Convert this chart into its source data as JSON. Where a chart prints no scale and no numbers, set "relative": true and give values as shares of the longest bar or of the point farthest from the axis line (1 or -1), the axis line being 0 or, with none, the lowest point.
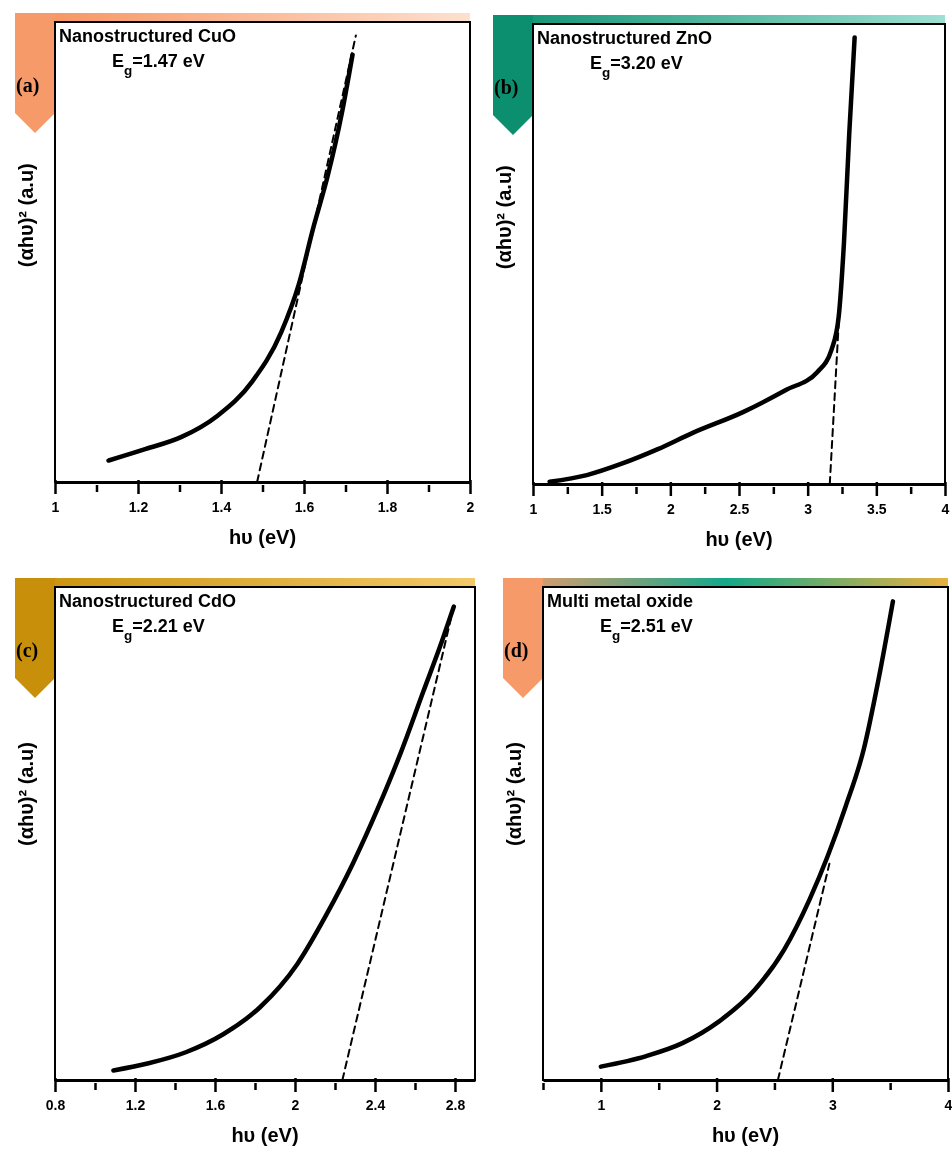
{
  "chart_data": [
    {
      "type": "line",
      "title": "Nanostructured CuO",
      "xlabel": "hυ (eV)",
      "ylabel": "(αhυ)² (a.u)",
      "annotations": [
        "(a)",
        "E$_{g}$=1.47 eV"
      ],
      "relative": true,
      "xlim": [
        1,
        2
      ],
      "xticks": [
        1,
        {
          "value": 1.1,
          "label": null
        },
        1.2,
        {
          "value": 1.3,
          "label": null
        },
        1.4,
        {
          "value": 1.5,
          "label": null
        },
        1.6,
        {
          "value": 1.7,
          "label": null
        },
        1.8,
        {
          "value": 1.9,
          "label": null
        },
        2
      ],
      "series": [
        {
          "type": "line",
          "color": "#000000",
          "x": [
            1.129,
            1.219,
            1.305,
            1.391,
            1.476,
            1.545,
            1.588,
            1.622,
            1.657,
            1.691,
            1.717
          ],
          "values": [
            0.048,
            0.074,
            0.101,
            0.148,
            0.226,
            0.335,
            0.444,
            0.568,
            0.685,
            0.825,
            0.957
          ]
        },
        {
          "type": "line",
          "color": "#000000",
          "line_style": "dashed",
          "x": [
            1.487,
            1.725
          ],
          "values": [
            0,
            1
          ]
        }
      ]
    },
    {
      "type": "line",
      "title": "Nanostructured ZnO",
      "xlabel": "hυ (eV)",
      "ylabel": "(αhυ)² (a.u)",
      "annotations": [
        "(b)",
        "E$_{g}$=3.20 eV"
      ],
      "relative": true,
      "xlim": [
        1,
        4
      ],
      "xticks": [
        1,
        {
          "value": 1.25,
          "label": null
        },
        1.5,
        {
          "value": 1.75,
          "label": null
        },
        2,
        {
          "value": 2.25,
          "label": null
        },
        2.5,
        {
          "value": 2.75,
          "label": null
        },
        3,
        {
          "value": 3.25,
          "label": null
        },
        3.5,
        {
          "value": 3.75,
          "label": null
        },
        4
      ],
      "series": [
        {
          "type": "line",
          "color": "#000000",
          "x": [
            1.121,
            1.392,
            1.651,
            1.909,
            2.167,
            2.529,
            2.838,
            3.071,
            3.174,
            3.226,
            3.264,
            3.303,
            3.342
          ],
          "values": [
            0.005,
            0.02,
            0.046,
            0.078,
            0.115,
            0.161,
            0.21,
            0.251,
            0.301,
            0.375,
            0.539,
            0.786,
            1
          ]
        },
        {
          "type": "line",
          "color": "#000000",
          "line_style": "dashed",
          "x": [
            3.161,
            3.231
          ],
          "values": [
            0,
            0.387
          ]
        }
      ]
    },
    {
      "type": "line",
      "title": "Nanostructured CdO",
      "xlabel": "hυ (eV)",
      "ylabel": "(αhυ)² (a.u)",
      "annotations": [
        "(c)",
        "E$_{g}$=2.21 eV"
      ],
      "relative": true,
      "xlim": [
        0.8,
        2.9
      ],
      "xticks": [
        0.8,
        {
          "value": 1,
          "label": null
        },
        1.2,
        {
          "value": 1.4,
          "label": null
        },
        1.6,
        {
          "value": 1.8,
          "label": null
        },
        2,
        {
          "value": 2.2,
          "label": null
        },
        2.4,
        {
          "value": 2.6,
          "label": null
        },
        2.8
      ],
      "series": [
        {
          "type": "line",
          "color": "#000000",
          "x": [
            1.092,
            1.268,
            1.454,
            1.639,
            1.825,
            2.011,
            2.159,
            2.289,
            2.419,
            2.53,
            2.642,
            2.735,
            2.794
          ],
          "values": [
            0.02,
            0.035,
            0.058,
            0.095,
            0.152,
            0.242,
            0.347,
            0.452,
            0.572,
            0.685,
            0.812,
            0.917,
            0.989
          ]
        },
        {
          "type": "line",
          "color": "#000000",
          "line_style": "dashed",
          "x": [
            2.237,
            2.8
          ],
          "values": [
            0,
            1
          ]
        }
      ]
    },
    {
      "type": "line",
      "title": "Multi metal oxide",
      "xlabel": "hυ (eV)",
      "ylabel": "(αhυ)² (a.u)",
      "annotations": [
        "(d)",
        "E$_{g}$=2.51 eV"
      ],
      "relative": true,
      "xlim": [
        0.5,
        4
      ],
      "xticks": [
        {
          "value": 0.5,
          "label": null
        },
        1,
        {
          "value": 1.5,
          "label": null
        },
        2,
        {
          "value": 2.5,
          "label": null
        },
        3,
        {
          "value": 3.5,
          "label": null
        },
        4
      ],
      "series": [
        {
          "type": "line",
          "color": "#000000",
          "x": [
            1.0,
            1.392,
            1.705,
            2.019,
            2.332,
            2.583,
            2.803,
            2.959,
            3.116,
            3.273,
            3.398,
            3.524
          ],
          "values": [
            0.028,
            0.05,
            0.077,
            0.122,
            0.189,
            0.272,
            0.377,
            0.467,
            0.572,
            0.692,
            0.835,
            1
          ]
        },
        {
          "type": "line",
          "color": "#000000",
          "line_style": "dashed",
          "x": [
            2.53,
            2.975
          ],
          "values": [
            0,
            0.452
          ]
        }
      ]
    }
  ]
}
